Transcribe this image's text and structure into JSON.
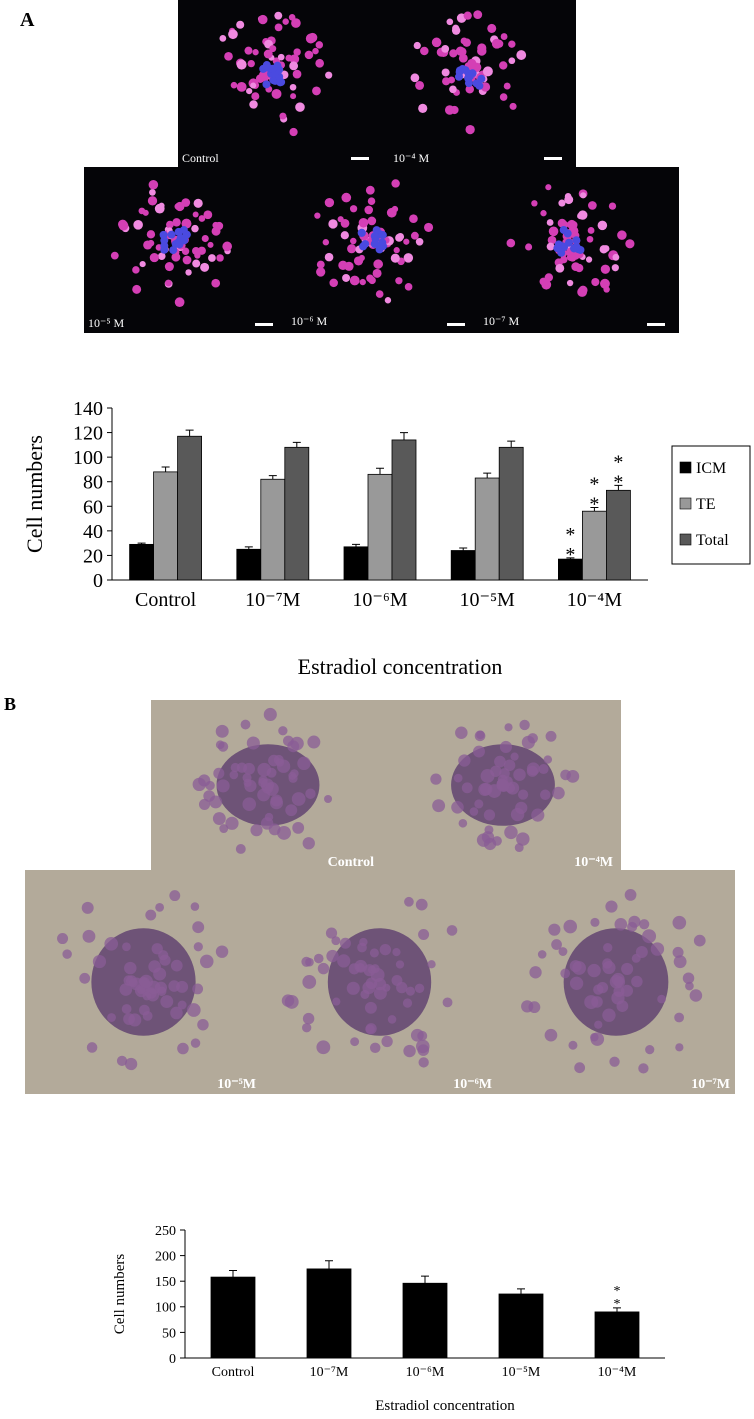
{
  "panels": [
    {
      "label": "A",
      "images": [
        "Control",
        "10⁻⁴ M",
        "10⁻⁵ M",
        "10⁻⁶ M",
        "10⁻⁷ M"
      ]
    },
    {
      "label": "B",
      "images": [
        "Control",
        "10⁻⁴M",
        "10⁻⁵M",
        "10⁻⁶M",
        "10⁻⁷M"
      ]
    }
  ],
  "chart_data": [
    {
      "type": "bar",
      "y_label": "Cell numbers",
      "x_label": "Estradiol concentration",
      "categories": [
        "Control",
        "10⁻⁷M",
        "10⁻⁶M",
        "10⁻⁵M",
        "10⁻⁴M"
      ],
      "series": [
        {
          "name": "ICM",
          "color": "#000000",
          "values": [
            29,
            25,
            27,
            24,
            17
          ],
          "errors": [
            1,
            2,
            2,
            2,
            1
          ],
          "annotations": [
            null,
            null,
            null,
            null,
            "**"
          ]
        },
        {
          "name": "TE",
          "color": "#999999",
          "values": [
            88,
            82,
            86,
            83,
            56
          ],
          "errors": [
            4,
            3,
            5,
            4,
            3
          ],
          "annotations": [
            null,
            null,
            null,
            null,
            "**"
          ]
        },
        {
          "name": "Total",
          "color": "#595959",
          "values": [
            117,
            108,
            114,
            108,
            73
          ],
          "errors": [
            5,
            4,
            6,
            5,
            4
          ],
          "annotations": [
            null,
            null,
            null,
            null,
            "**"
          ]
        }
      ],
      "ylim": [
        0,
        140
      ],
      "yticks": [
        0,
        20,
        40,
        60,
        80,
        100,
        120,
        140
      ],
      "legend": "right"
    },
    {
      "type": "bar",
      "y_label": "Cell numbers",
      "x_label": "Estradiol concentration",
      "categories": [
        "Control",
        "10⁻⁷M",
        "10⁻⁶M",
        "10⁻⁵M",
        "10⁻⁴M"
      ],
      "series": [
        {
          "color": "#000000",
          "values": [
            158,
            174,
            146,
            125,
            90
          ],
          "errors": [
            13,
            16,
            14,
            10,
            8
          ],
          "annotations": [
            null,
            null,
            null,
            null,
            "**"
          ]
        }
      ],
      "ylim": [
        0,
        250
      ],
      "yticks": [
        0,
        50,
        100,
        150,
        200,
        250
      ]
    }
  ]
}
